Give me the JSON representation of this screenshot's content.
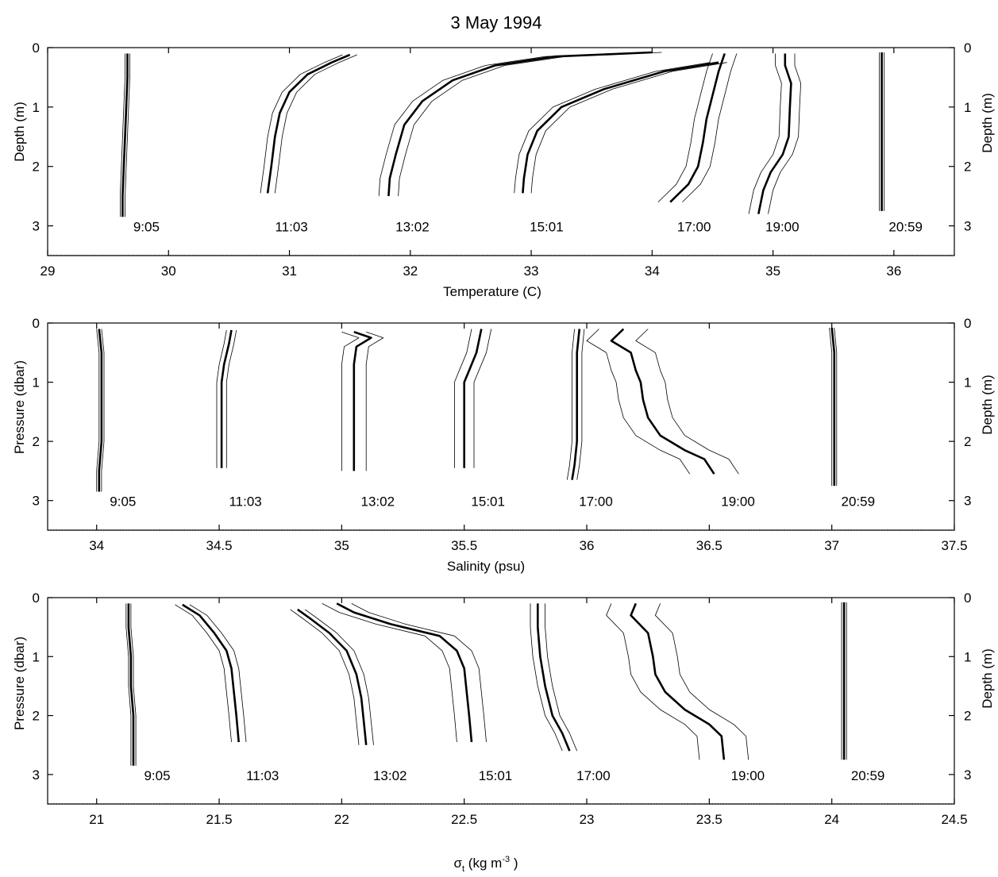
{
  "title": "3 May 1994",
  "panels": [
    {
      "id": "temperature",
      "xlabel": "Temperature (C)",
      "ylabel_left": "Depth (m)",
      "ylabel_right": "Depth (m)",
      "xlim": [
        29,
        36.5
      ],
      "xticks": [
        29,
        30,
        31,
        32,
        33,
        34,
        35,
        36
      ],
      "xtick_labels": [
        "29",
        "30",
        "31",
        "32",
        "33",
        "34",
        "35",
        "36"
      ],
      "ylim": [
        0,
        3.5
      ],
      "yticks": [
        0,
        1,
        2,
        3
      ],
      "ytick_labels": [
        "0",
        "1",
        "2",
        "3"
      ]
    },
    {
      "id": "salinity",
      "xlabel": "Salinity (psu)",
      "ylabel_left": "Pressure (dbar)",
      "ylabel_right": "Depth (m)",
      "xlim": [
        33.8,
        37.5
      ],
      "xticks": [
        34,
        34.5,
        35,
        35.5,
        36,
        36.5,
        37,
        37.5
      ],
      "xtick_labels": [
        "34",
        "34.5",
        "35",
        "35.5",
        "36",
        "36.5",
        "37",
        "37.5"
      ],
      "ylim": [
        0,
        3.5
      ],
      "yticks": [
        0,
        1,
        2,
        3
      ],
      "ytick_labels": [
        "0",
        "1",
        "2",
        "3"
      ]
    },
    {
      "id": "sigma_t",
      "xlabel_main": "σ",
      "xlabel_sub": "t",
      "xlabel_unit_pre": " (kg m",
      "xlabel_sup": "-3",
      "xlabel_unit_post": " )",
      "ylabel_left": "Pressure (dbar)",
      "ylabel_right": "Depth (m)",
      "xlim": [
        20.8,
        24.5
      ],
      "xticks": [
        21,
        21.5,
        22,
        22.5,
        23,
        23.5,
        24,
        24.5
      ],
      "xtick_labels": [
        "21",
        "21.5",
        "22",
        "22.5",
        "23",
        "23.5",
        "24",
        "24.5"
      ],
      "ylim": [
        0,
        3.5
      ],
      "yticks": [
        0,
        1,
        2,
        3
      ],
      "ytick_labels": [
        "0",
        "1",
        "2",
        "3"
      ]
    }
  ],
  "chart_data": [
    {
      "type": "line",
      "title": "3 May 1994",
      "xlabel": "Temperature (C)",
      "ylabel": "Depth (m)",
      "xlim": [
        29,
        36.5
      ],
      "ylim": [
        3.5,
        0
      ],
      "series": [
        {
          "name": "9:05",
          "env": 0.02,
          "points": [
            [
              29.66,
              0.1
            ],
            [
              29.66,
              0.5
            ],
            [
              29.65,
              1.0
            ],
            [
              29.64,
              1.5
            ],
            [
              29.63,
              2.0
            ],
            [
              29.62,
              2.5
            ],
            [
              29.62,
              2.85
            ]
          ]
        },
        {
          "name": "11:03",
          "env": 0.06,
          "points": [
            [
              31.5,
              0.12
            ],
            [
              31.35,
              0.25
            ],
            [
              31.15,
              0.45
            ],
            [
              31.0,
              0.75
            ],
            [
              30.92,
              1.1
            ],
            [
              30.88,
              1.5
            ],
            [
              30.85,
              2.0
            ],
            [
              30.82,
              2.45
            ]
          ]
        },
        {
          "name": "13:02",
          "env": 0.08,
          "points": [
            [
              34.0,
              0.08
            ],
            [
              33.2,
              0.15
            ],
            [
              32.7,
              0.3
            ],
            [
              32.35,
              0.55
            ],
            [
              32.1,
              0.9
            ],
            [
              31.95,
              1.3
            ],
            [
              31.88,
              1.8
            ],
            [
              31.83,
              2.2
            ],
            [
              31.82,
              2.5
            ]
          ]
        },
        {
          "name": "15:01",
          "env": 0.07,
          "points": [
            [
              34.55,
              0.25
            ],
            [
              34.1,
              0.4
            ],
            [
              33.6,
              0.7
            ],
            [
              33.25,
              1.0
            ],
            [
              33.05,
              1.4
            ],
            [
              32.97,
              1.8
            ],
            [
              32.94,
              2.2
            ],
            [
              32.93,
              2.45
            ]
          ]
        },
        {
          "name": "17:00",
          "env": 0.1,
          "points": [
            [
              34.6,
              0.1
            ],
            [
              34.55,
              0.4
            ],
            [
              34.5,
              0.8
            ],
            [
              34.45,
              1.2
            ],
            [
              34.42,
              1.6
            ],
            [
              34.38,
              2.0
            ],
            [
              34.3,
              2.3
            ],
            [
              34.2,
              2.5
            ],
            [
              34.15,
              2.6
            ]
          ]
        },
        {
          "name": "19:00",
          "env": 0.08,
          "points": [
            [
              35.1,
              0.1
            ],
            [
              35.1,
              0.3
            ],
            [
              35.15,
              0.6
            ],
            [
              35.14,
              1.0
            ],
            [
              35.13,
              1.5
            ],
            [
              35.08,
              1.8
            ],
            [
              34.98,
              2.1
            ],
            [
              34.92,
              2.4
            ],
            [
              34.88,
              2.8
            ]
          ]
        },
        {
          "name": "20:59",
          "env": 0.02,
          "points": [
            [
              35.9,
              0.08
            ],
            [
              35.9,
              0.5
            ],
            [
              35.9,
              1.0
            ],
            [
              35.9,
              1.5
            ],
            [
              35.9,
              2.0
            ],
            [
              35.9,
              2.5
            ],
            [
              35.9,
              2.75
            ]
          ]
        }
      ]
    },
    {
      "type": "line",
      "xlabel": "Salinity (psu)",
      "ylabel": "Pressure (dbar)",
      "xlim": [
        33.8,
        37.5
      ],
      "ylim": [
        3.5,
        0
      ],
      "series": [
        {
          "name": "9:05",
          "env": 0.01,
          "points": [
            [
              34.01,
              0.1
            ],
            [
              34.02,
              0.5
            ],
            [
              34.02,
              1.0
            ],
            [
              34.02,
              1.5
            ],
            [
              34.02,
              2.0
            ],
            [
              34.01,
              2.5
            ],
            [
              34.01,
              2.85
            ]
          ]
        },
        {
          "name": "11:03",
          "env": 0.02,
          "points": [
            [
              34.55,
              0.12
            ],
            [
              34.54,
              0.35
            ],
            [
              34.52,
              0.7
            ],
            [
              34.51,
              1.0
            ],
            [
              34.51,
              1.5
            ],
            [
              34.51,
              2.0
            ],
            [
              34.51,
              2.45
            ]
          ]
        },
        {
          "name": "13:02",
          "env": 0.05,
          "points": [
            [
              35.05,
              0.15
            ],
            [
              35.12,
              0.25
            ],
            [
              35.06,
              0.4
            ],
            [
              35.05,
              0.7
            ],
            [
              35.05,
              1.0
            ],
            [
              35.05,
              1.5
            ],
            [
              35.05,
              2.0
            ],
            [
              35.05,
              2.5
            ]
          ]
        },
        {
          "name": "15:01",
          "env": 0.04,
          "points": [
            [
              35.57,
              0.1
            ],
            [
              35.56,
              0.3
            ],
            [
              35.55,
              0.5
            ],
            [
              35.52,
              0.8
            ],
            [
              35.5,
              1.0
            ],
            [
              35.5,
              1.5
            ],
            [
              35.5,
              2.0
            ],
            [
              35.5,
              2.45
            ]
          ]
        },
        {
          "name": "17:00",
          "env": 0.02,
          "points": [
            [
              35.97,
              0.1
            ],
            [
              35.96,
              0.5
            ],
            [
              35.96,
              1.0
            ],
            [
              35.96,
              1.5
            ],
            [
              35.96,
              2.0
            ],
            [
              35.95,
              2.4
            ],
            [
              35.94,
              2.65
            ]
          ]
        },
        {
          "name": "19:00",
          "env": 0.1,
          "points": [
            [
              36.15,
              0.1
            ],
            [
              36.1,
              0.3
            ],
            [
              36.18,
              0.5
            ],
            [
              36.2,
              0.8
            ],
            [
              36.22,
              1.0
            ],
            [
              36.23,
              1.3
            ],
            [
              36.25,
              1.6
            ],
            [
              36.3,
              1.9
            ],
            [
              36.4,
              2.15
            ],
            [
              36.48,
              2.3
            ],
            [
              36.52,
              2.55
            ]
          ]
        },
        {
          "name": "20:59",
          "env": 0.01,
          "points": [
            [
              37.0,
              0.08
            ],
            [
              37.01,
              0.5
            ],
            [
              37.01,
              1.0
            ],
            [
              37.01,
              1.5
            ],
            [
              37.01,
              2.0
            ],
            [
              37.01,
              2.5
            ],
            [
              37.01,
              2.75
            ]
          ]
        }
      ]
    },
    {
      "type": "line",
      "xlabel": "σt (kg m-3 )",
      "ylabel": "Pressure (dbar)",
      "xlim": [
        20.8,
        24.5
      ],
      "ylim": [
        3.5,
        0
      ],
      "series": [
        {
          "name": "9:05",
          "env": 0.01,
          "points": [
            [
              21.13,
              0.1
            ],
            [
              21.13,
              0.5
            ],
            [
              21.14,
              1.0
            ],
            [
              21.14,
              1.5
            ],
            [
              21.15,
              2.0
            ],
            [
              21.15,
              2.5
            ],
            [
              21.15,
              2.85
            ]
          ]
        },
        {
          "name": "11:03",
          "env": 0.03,
          "points": [
            [
              21.35,
              0.12
            ],
            [
              21.42,
              0.3
            ],
            [
              21.48,
              0.6
            ],
            [
              21.53,
              0.9
            ],
            [
              21.55,
              1.2
            ],
            [
              21.56,
              1.6
            ],
            [
              21.57,
              2.0
            ],
            [
              21.58,
              2.45
            ]
          ]
        },
        {
          "name": "13:02",
          "env": 0.03,
          "points": [
            [
              21.82,
              0.2
            ],
            [
              21.87,
              0.35
            ],
            [
              21.95,
              0.6
            ],
            [
              22.02,
              0.9
            ],
            [
              22.06,
              1.3
            ],
            [
              22.08,
              1.7
            ],
            [
              22.09,
              2.1
            ],
            [
              22.1,
              2.5
            ]
          ]
        },
        {
          "name": "15:01",
          "env": 0.06,
          "points": [
            [
              21.98,
              0.1
            ],
            [
              22.05,
              0.25
            ],
            [
              22.2,
              0.45
            ],
            [
              22.4,
              0.65
            ],
            [
              22.47,
              0.9
            ],
            [
              22.5,
              1.2
            ],
            [
              22.51,
              1.6
            ],
            [
              22.52,
              2.0
            ],
            [
              22.53,
              2.45
            ]
          ]
        },
        {
          "name": "17:00",
          "env": 0.03,
          "points": [
            [
              22.8,
              0.1
            ],
            [
              22.8,
              0.5
            ],
            [
              22.81,
              1.0
            ],
            [
              22.83,
              1.5
            ],
            [
              22.86,
              2.0
            ],
            [
              22.9,
              2.3
            ],
            [
              22.93,
              2.6
            ]
          ]
        },
        {
          "name": "19:00",
          "env": 0.1,
          "points": [
            [
              23.2,
              0.1
            ],
            [
              23.18,
              0.3
            ],
            [
              23.25,
              0.6
            ],
            [
              23.27,
              1.0
            ],
            [
              23.28,
              1.3
            ],
            [
              23.32,
              1.6
            ],
            [
              23.4,
              1.9
            ],
            [
              23.5,
              2.15
            ],
            [
              23.55,
              2.35
            ],
            [
              23.56,
              2.75
            ]
          ]
        },
        {
          "name": "20:59",
          "env": 0.01,
          "points": [
            [
              24.05,
              0.08
            ],
            [
              24.05,
              0.5
            ],
            [
              24.05,
              1.0
            ],
            [
              24.05,
              1.5
            ],
            [
              24.05,
              2.0
            ],
            [
              24.05,
              2.5
            ],
            [
              24.05,
              2.75
            ]
          ]
        }
      ]
    }
  ]
}
